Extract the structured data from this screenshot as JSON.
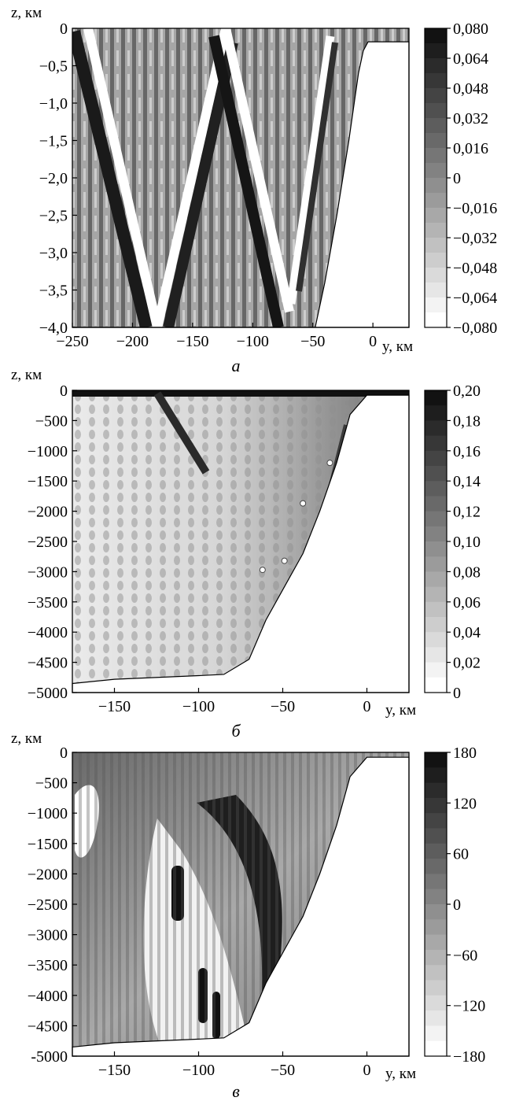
{
  "chart_data": [
    {
      "type": "heatmap",
      "panel_label": "а",
      "xlabel": "y, км",
      "ylabel": "z, км",
      "x_ticks": [
        "−250",
        "−200",
        "−150",
        "−100",
        "−50",
        "0"
      ],
      "x_tick_values": [
        -250,
        -200,
        -150,
        -100,
        -50,
        0
      ],
      "y_ticks": [
        "0",
        "−0,5",
        "−1,0",
        "−1,5",
        "−2,0",
        "−2,5",
        "−3,0",
        "−3,5",
        "−4,0"
      ],
      "y_tick_values": [
        0,
        -0.5,
        -1.0,
        -1.5,
        -2.0,
        -2.5,
        -3.0,
        -3.5,
        -4.0
      ],
      "xlim": [
        -250,
        30
      ],
      "ylim": [
        -4.0,
        0
      ],
      "colorbar_labels": [
        "0,080",
        "0,064",
        "0,048",
        "0,032",
        "0,016",
        "0",
        "−0,016",
        "−0,032",
        "−0,048",
        "−0,064",
        "−0,080"
      ],
      "colorbar_range": [
        -0.08,
        0.08
      ],
      "colormap": "grayscale, white = min, black = max",
      "bottom_profile": [
        [
          -250,
          -4.0
        ],
        [
          -48,
          -4.0
        ],
        [
          -40,
          -3.4
        ],
        [
          -30,
          -2.5
        ],
        [
          -20,
          -1.5
        ],
        [
          -12,
          -0.6
        ],
        [
          -8,
          -0.3
        ],
        [
          -4,
          -0.18
        ],
        [
          30,
          -0.18
        ]
      ]
    },
    {
      "type": "heatmap",
      "panel_label": "б",
      "xlabel": "y, км",
      "ylabel": "z, км",
      "x_ticks": [
        "−150",
        "−100",
        "−50",
        "0"
      ],
      "x_tick_values": [
        -150,
        -100,
        -50,
        0
      ],
      "y_ticks": [
        "0",
        "−500",
        "−1000",
        "−1500",
        "−2000",
        "−2500",
        "−3000",
        "−3500",
        "−4000",
        "−4500",
        "−5000"
      ],
      "y_tick_values": [
        0,
        -500,
        -1000,
        -1500,
        -2000,
        -2500,
        -3000,
        -3500,
        -4000,
        -4500,
        -5000
      ],
      "xlim": [
        -175,
        25
      ],
      "ylim": [
        -5000,
        0
      ],
      "colorbar_labels": [
        "0,20",
        "0,18",
        "0,16",
        "0,14",
        "0,12",
        "0,10",
        "0,08",
        "0,06",
        "0,04",
        "0,02",
        "0"
      ],
      "colorbar_range": [
        0,
        0.2
      ],
      "colormap": "grayscale, white = min, black = max",
      "marked_points": [
        [
          -22,
          -1200
        ],
        [
          -38,
          -1870
        ],
        [
          -49,
          -2820
        ],
        [
          -62,
          -2970
        ]
      ],
      "bottom_profile": [
        [
          -175,
          -4850
        ],
        [
          -150,
          -4780
        ],
        [
          -100,
          -4720
        ],
        [
          -85,
          -4700
        ],
        [
          -70,
          -4450
        ],
        [
          -60,
          -3800
        ],
        [
          -50,
          -3300
        ],
        [
          -38,
          -2700
        ],
        [
          -28,
          -2000
        ],
        [
          -18,
          -1200
        ],
        [
          -10,
          -400
        ],
        [
          0,
          -80
        ],
        [
          25,
          -80
        ]
      ]
    },
    {
      "type": "heatmap",
      "panel_label": "в",
      "xlabel": "y, км",
      "ylabel": "z, км",
      "x_ticks": [
        "−150",
        "−100",
        "−50",
        "0"
      ],
      "x_tick_values": [
        -150,
        -100,
        -50,
        0
      ],
      "y_ticks": [
        "0",
        "−500",
        "−1000",
        "−1500",
        "−2000",
        "−2500",
        "−3000",
        "−3500",
        "−4000",
        "−4500",
        "-5000"
      ],
      "y_tick_values": [
        0,
        -500,
        -1000,
        -1500,
        -2000,
        -2500,
        -3000,
        -3500,
        -4000,
        -4500,
        -5000
      ],
      "xlim": [
        -175,
        25
      ],
      "ylim": [
        -5000,
        0
      ],
      "colorbar_labels": [
        "180",
        "120",
        "60",
        "0",
        "−60",
        "−120",
        "−180"
      ],
      "colorbar_range": [
        -180,
        180
      ],
      "colormap": "grayscale, white = min, black = max",
      "bottom_profile": [
        [
          -175,
          -4850
        ],
        [
          -150,
          -4780
        ],
        [
          -100,
          -4720
        ],
        [
          -85,
          -4700
        ],
        [
          -70,
          -4450
        ],
        [
          -60,
          -3800
        ],
        [
          -50,
          -3300
        ],
        [
          -38,
          -2700
        ],
        [
          -28,
          -2000
        ],
        [
          -18,
          -1200
        ],
        [
          -10,
          -400
        ],
        [
          0,
          -80
        ],
        [
          25,
          -80
        ]
      ]
    }
  ]
}
